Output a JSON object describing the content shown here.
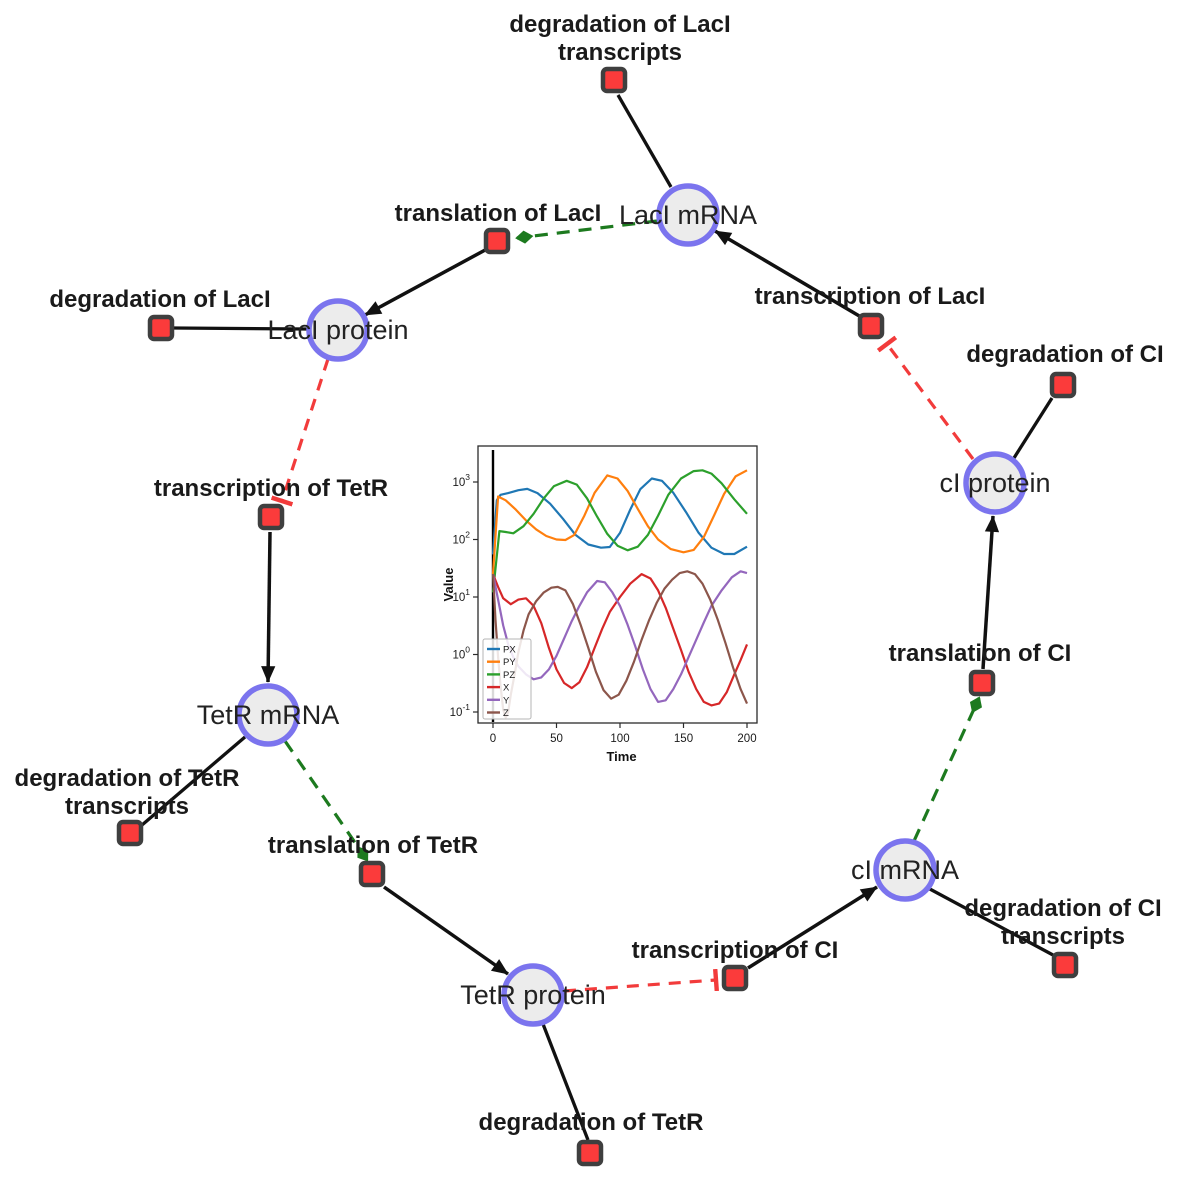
{
  "colors": {
    "species_fill": "#ececec",
    "species_stroke": "#7b74ee",
    "reaction_fill": "#fb3b3b",
    "reaction_stroke": "#3f3f3f",
    "edge_black": "#111111",
    "edge_modifier_green": "#1d7a1f",
    "edge_inhibition_red": "#f23b3b",
    "label": "#1a1a1a"
  },
  "diagram": {
    "species": [
      {
        "id": "laci-mrna",
        "label": "LacI mRNA"
      },
      {
        "id": "laci-protein",
        "label": "LacI protein"
      },
      {
        "id": "tetr-mrna",
        "label": "TetR mRNA"
      },
      {
        "id": "tetr-protein",
        "label": "TetR protein"
      },
      {
        "id": "ci-mrna",
        "label": "cI mRNA"
      },
      {
        "id": "ci-protein",
        "label": "cI protein"
      }
    ],
    "reactions": [
      {
        "id": "degradation-of-laci-transcripts",
        "label_lines": [
          "degradation of LacI",
          "transcripts"
        ]
      },
      {
        "id": "transcription-of-laci",
        "label_lines": [
          "transcription of LacI"
        ]
      },
      {
        "id": "translation-of-laci",
        "label_lines": [
          "translation of LacI"
        ]
      },
      {
        "id": "degradation-of-laci",
        "label_lines": [
          "degradation of LacI"
        ]
      },
      {
        "id": "transcription-of-tetr",
        "label_lines": [
          "transcription of TetR"
        ]
      },
      {
        "id": "degradation-of-ci",
        "label_lines": [
          "degradation of CI"
        ]
      },
      {
        "id": "translation-of-ci",
        "label_lines": [
          "translation of CI"
        ]
      },
      {
        "id": "degradation-of-ci-transcripts",
        "label_lines": [
          "degradation of CI",
          "transcripts"
        ]
      },
      {
        "id": "transcription-of-ci",
        "label_lines": [
          "transcription of CI"
        ]
      },
      {
        "id": "translation-of-tetr",
        "label_lines": [
          "translation of TetR"
        ]
      },
      {
        "id": "degradation-of-tetr-transcripts",
        "label_lines": [
          "degradation of TetR",
          "transcripts"
        ]
      },
      {
        "id": "degradation-of-tetr",
        "label_lines": [
          "degradation of TetR"
        ]
      }
    ],
    "edges": [
      {
        "from": "laci-mrna",
        "to": "degradation-of-laci-transcripts",
        "type": "reactant"
      },
      {
        "from": "transcription-of-laci",
        "to": "laci-mrna",
        "type": "product"
      },
      {
        "from": "laci-mrna",
        "to": "translation-of-laci",
        "type": "modifier"
      },
      {
        "from": "translation-of-laci",
        "to": "laci-protein",
        "type": "product"
      },
      {
        "from": "laci-protein",
        "to": "degradation-of-laci",
        "type": "reactant"
      },
      {
        "from": "laci-protein",
        "to": "transcription-of-tetr",
        "type": "inhibition"
      },
      {
        "from": "transcription-of-tetr",
        "to": "tetr-mrna",
        "type": "product"
      },
      {
        "from": "tetr-mrna",
        "to": "degradation-of-tetr-transcripts",
        "type": "reactant"
      },
      {
        "from": "tetr-mrna",
        "to": "translation-of-tetr",
        "type": "modifier"
      },
      {
        "from": "translation-of-tetr",
        "to": "tetr-protein",
        "type": "product"
      },
      {
        "from": "tetr-protein",
        "to": "degradation-of-tetr",
        "type": "reactant"
      },
      {
        "from": "tetr-protein",
        "to": "transcription-of-ci",
        "type": "inhibition"
      },
      {
        "from": "transcription-of-ci",
        "to": "ci-mrna",
        "type": "product"
      },
      {
        "from": "ci-mrna",
        "to": "degradation-of-ci-transcripts",
        "type": "reactant"
      },
      {
        "from": "ci-mrna",
        "to": "translation-of-ci",
        "type": "modifier"
      },
      {
        "from": "translation-of-ci",
        "to": "ci-protein",
        "type": "product"
      },
      {
        "from": "ci-protein",
        "to": "degradation-of-ci",
        "type": "reactant"
      },
      {
        "from": "ci-protein",
        "to": "transcription-of-laci",
        "type": "inhibition"
      }
    ]
  },
  "chart_data": {
    "type": "line",
    "title": "",
    "xlabel": "Time",
    "ylabel": "Value",
    "x_range": [
      0,
      200
    ],
    "x_ticks": [
      0,
      50,
      100,
      150,
      200
    ],
    "y_scale": "log",
    "y_tick_exponents": [
      -1,
      0,
      1,
      2,
      3
    ],
    "ylim": [
      0.065,
      4300
    ],
    "grid": false,
    "legend_position": "lower left",
    "vertical_line_x": 0,
    "series": [
      {
        "name": "PX",
        "color": "#1f77b4",
        "points": [
          [
            0,
            55
          ],
          [
            3,
            480
          ],
          [
            6,
            600
          ],
          [
            12,
            640
          ],
          [
            20,
            720
          ],
          [
            27,
            760
          ],
          [
            35,
            640
          ],
          [
            45,
            420
          ],
          [
            55,
            230
          ],
          [
            65,
            120
          ],
          [
            75,
            82
          ],
          [
            85,
            72
          ],
          [
            92,
            74
          ],
          [
            100,
            130
          ],
          [
            108,
            330
          ],
          [
            116,
            750
          ],
          [
            125,
            1150
          ],
          [
            133,
            1050
          ],
          [
            142,
            650
          ],
          [
            152,
            300
          ],
          [
            162,
            130
          ],
          [
            172,
            72
          ],
          [
            182,
            56
          ],
          [
            190,
            56
          ],
          [
            200,
            75
          ]
        ]
      },
      {
        "name": "PY",
        "color": "#ff7f0e",
        "points": [
          [
            0,
            25
          ],
          [
            4,
            560
          ],
          [
            10,
            480
          ],
          [
            18,
            330
          ],
          [
            26,
            215
          ],
          [
            34,
            150
          ],
          [
            42,
            115
          ],
          [
            50,
            100
          ],
          [
            57,
            98
          ],
          [
            64,
            120
          ],
          [
            72,
            260
          ],
          [
            80,
            650
          ],
          [
            90,
            1300
          ],
          [
            98,
            1150
          ],
          [
            106,
            700
          ],
          [
            114,
            340
          ],
          [
            122,
            170
          ],
          [
            130,
            100
          ],
          [
            140,
            68
          ],
          [
            150,
            60
          ],
          [
            158,
            66
          ],
          [
            166,
            110
          ],
          [
            174,
            260
          ],
          [
            182,
            620
          ],
          [
            191,
            1250
          ],
          [
            200,
            1600
          ]
        ]
      },
      {
        "name": "PZ",
        "color": "#2ca02c",
        "points": [
          [
            0,
            12
          ],
          [
            5,
            140
          ],
          [
            10,
            135
          ],
          [
            16,
            128
          ],
          [
            24,
            170
          ],
          [
            32,
            280
          ],
          [
            40,
            520
          ],
          [
            48,
            850
          ],
          [
            58,
            1050
          ],
          [
            66,
            900
          ],
          [
            74,
            520
          ],
          [
            82,
            250
          ],
          [
            90,
            125
          ],
          [
            98,
            78
          ],
          [
            106,
            65
          ],
          [
            114,
            75
          ],
          [
            122,
            120
          ],
          [
            130,
            260
          ],
          [
            138,
            600
          ],
          [
            148,
            1150
          ],
          [
            158,
            1550
          ],
          [
            165,
            1600
          ],
          [
            172,
            1400
          ],
          [
            180,
            950
          ],
          [
            190,
            500
          ],
          [
            200,
            280
          ]
        ]
      },
      {
        "name": "X",
        "color": "#d62728",
        "points": [
          [
            0,
            25
          ],
          [
            4,
            15
          ],
          [
            8,
            9.5
          ],
          [
            14,
            7.5
          ],
          [
            20,
            9
          ],
          [
            26,
            9.5
          ],
          [
            32,
            7
          ],
          [
            38,
            3.5
          ],
          [
            44,
            1.3
          ],
          [
            50,
            0.55
          ],
          [
            56,
            0.32
          ],
          [
            62,
            0.26
          ],
          [
            68,
            0.33
          ],
          [
            74,
            0.6
          ],
          [
            80,
            1.3
          ],
          [
            86,
            2.8
          ],
          [
            92,
            5.5
          ],
          [
            100,
            10
          ],
          [
            108,
            17
          ],
          [
            117,
            25
          ],
          [
            124,
            21
          ],
          [
            130,
            13
          ],
          [
            136,
            6.5
          ],
          [
            142,
            2.8
          ],
          [
            148,
            1.2
          ],
          [
            154,
            0.5
          ],
          [
            160,
            0.25
          ],
          [
            166,
            0.15
          ],
          [
            172,
            0.13
          ],
          [
            178,
            0.14
          ],
          [
            184,
            0.22
          ],
          [
            190,
            0.45
          ],
          [
            195,
            0.8
          ],
          [
            200,
            1.5
          ]
        ]
      },
      {
        "name": "Y",
        "color": "#9467bd",
        "points": [
          [
            0,
            25
          ],
          [
            4,
            9
          ],
          [
            8,
            3.2
          ],
          [
            12,
            1.5
          ],
          [
            16,
            0.9
          ],
          [
            20,
            0.62
          ],
          [
            26,
            0.45
          ],
          [
            32,
            0.37
          ],
          [
            38,
            0.4
          ],
          [
            44,
            0.55
          ],
          [
            50,
            0.95
          ],
          [
            56,
            1.9
          ],
          [
            62,
            3.8
          ],
          [
            68,
            7
          ],
          [
            74,
            12
          ],
          [
            82,
            19
          ],
          [
            88,
            18
          ],
          [
            94,
            12
          ],
          [
            100,
            7
          ],
          [
            106,
            3.3
          ],
          [
            112,
            1.4
          ],
          [
            118,
            0.55
          ],
          [
            124,
            0.25
          ],
          [
            130,
            0.15
          ],
          [
            136,
            0.16
          ],
          [
            142,
            0.25
          ],
          [
            148,
            0.45
          ],
          [
            154,
            0.9
          ],
          [
            160,
            1.8
          ],
          [
            166,
            3.6
          ],
          [
            172,
            7
          ],
          [
            180,
            13
          ],
          [
            188,
            22
          ],
          [
            195,
            28
          ],
          [
            200,
            26
          ]
        ]
      },
      {
        "name": "Z",
        "color": "#8c564b",
        "points": [
          [
            0,
            25
          ],
          [
            2,
            4
          ],
          [
            4,
            0.9
          ],
          [
            6,
            0.28
          ],
          [
            8,
            0.11
          ],
          [
            10,
            0.08
          ],
          [
            12,
            0.1
          ],
          [
            14,
            0.2
          ],
          [
            17,
            0.45
          ],
          [
            20,
            1.1
          ],
          [
            24,
            2.6
          ],
          [
            28,
            5
          ],
          [
            34,
            8.5
          ],
          [
            40,
            12
          ],
          [
            46,
            14.5
          ],
          [
            51,
            15
          ],
          [
            57,
            13
          ],
          [
            63,
            7.5
          ],
          [
            69,
            3.3
          ],
          [
            75,
            1.3
          ],
          [
            81,
            0.5
          ],
          [
            87,
            0.24
          ],
          [
            93,
            0.17
          ],
          [
            99,
            0.2
          ],
          [
            105,
            0.35
          ],
          [
            111,
            0.75
          ],
          [
            117,
            1.8
          ],
          [
            123,
            4
          ],
          [
            129,
            8
          ],
          [
            135,
            14
          ],
          [
            141,
            20
          ],
          [
            147,
            26
          ],
          [
            153,
            28
          ],
          [
            159,
            25
          ],
          [
            165,
            17
          ],
          [
            171,
            9
          ],
          [
            177,
            4
          ],
          [
            183,
            1.6
          ],
          [
            189,
            0.6
          ],
          [
            195,
            0.25
          ],
          [
            200,
            0.14
          ]
        ]
      }
    ]
  }
}
